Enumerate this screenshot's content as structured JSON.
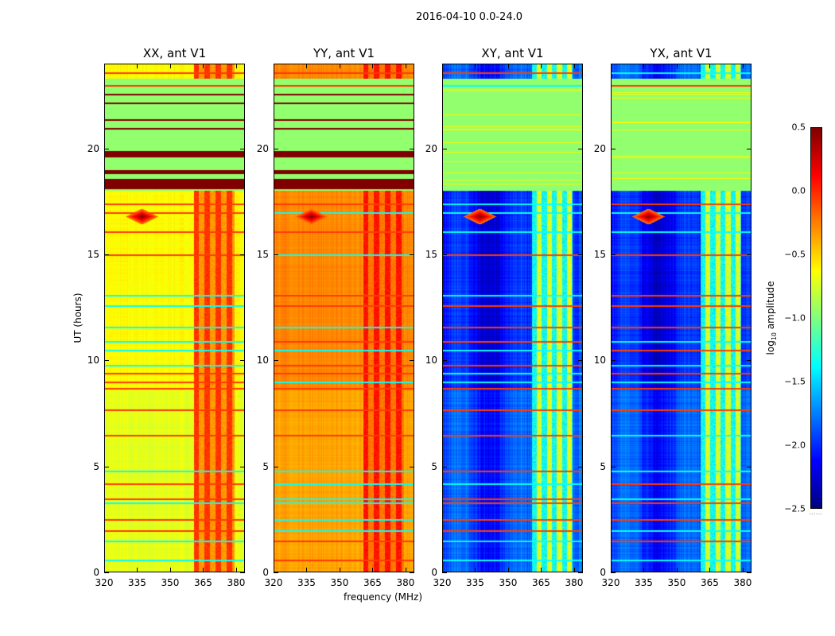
{
  "chart_data": {
    "type": "heatmap",
    "title": "2016-04-10 0.0-24.0",
    "xlabel": "frequency (MHz)",
    "ylabel": "UT (hours)",
    "xlim": [
      320,
      384
    ],
    "ylim": [
      0,
      24
    ],
    "xticks": [
      "320",
      "335",
      "350",
      "365",
      "380"
    ],
    "yticks": [
      "0",
      "5",
      "10",
      "15",
      "20"
    ],
    "panels": [
      {
        "title": "XX, ant V1",
        "pol": "XX",
        "base": -0.65,
        "band_level": -0.15
      },
      {
        "title": "YY, ant V1",
        "pol": "YY",
        "base": -0.3,
        "band_level": -0.05
      },
      {
        "title": "XY, ant V1",
        "pol": "XY",
        "base": -2.0,
        "band_level": -0.9
      },
      {
        "title": "YX, ant V1",
        "pol": "YX",
        "base": -2.0,
        "band_level": -0.9
      }
    ],
    "flagged_interval_hours": [
      18.0,
      23.3
    ],
    "flagged_level": -0.95,
    "saturated_bands_hours": [
      [
        18.1,
        18.6
      ],
      [
        18.8,
        19.0
      ],
      [
        19.6,
        19.9
      ],
      [
        20.9,
        21.0
      ],
      [
        21.3,
        21.4
      ],
      [
        22.1,
        22.2
      ],
      [
        22.5,
        22.6
      ]
    ],
    "rfi_lines_hours": [
      0.6,
      1.5,
      2.0,
      2.5,
      3.3,
      3.5,
      4.2,
      4.8,
      6.5,
      7.7,
      8.7,
      9.0,
      9.4,
      9.8,
      10.5,
      10.9,
      11.6,
      12.6,
      13.1,
      15.0,
      16.1,
      17.0,
      17.4,
      23.0,
      23.6
    ],
    "rfi_source": {
      "hour": 16.8,
      "freq_mhz": 337
    },
    "colorbar": {
      "label": "log10 amplitude",
      "label_main": "log",
      "label_sub": "10",
      "label_rest": " amplitude",
      "vmin": -2.5,
      "vmax": 0.5,
      "ticks": [
        "0.5",
        "0.0",
        "−0.5",
        "−1.0",
        "−1.5",
        "−2.0",
        "−2.5"
      ],
      "colormap": "jet"
    }
  }
}
